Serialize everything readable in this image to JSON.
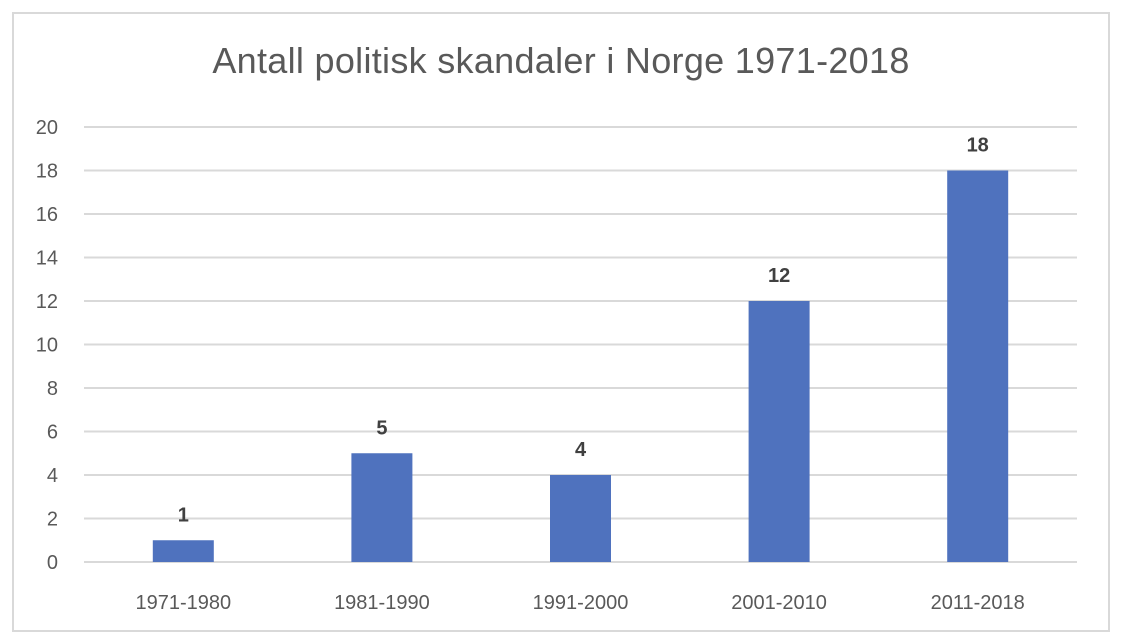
{
  "chart_data": {
    "type": "bar",
    "title": "Antall politisk skandaler i Norge 1971-2018",
    "categories": [
      "1971-1980",
      "1981-1990",
      "1991-2000",
      "2001-2010",
      "2011-2018"
    ],
    "values": [
      1,
      5,
      4,
      12,
      18
    ],
    "ylim": [
      0,
      20
    ],
    "yticks": [
      0,
      2,
      4,
      6,
      8,
      10,
      12,
      14,
      16,
      18,
      20
    ],
    "grid": true,
    "data_labels": true,
    "colors": {
      "bar": "#4f72be",
      "grid": "#d9d9d9",
      "text": "#595959"
    }
  }
}
